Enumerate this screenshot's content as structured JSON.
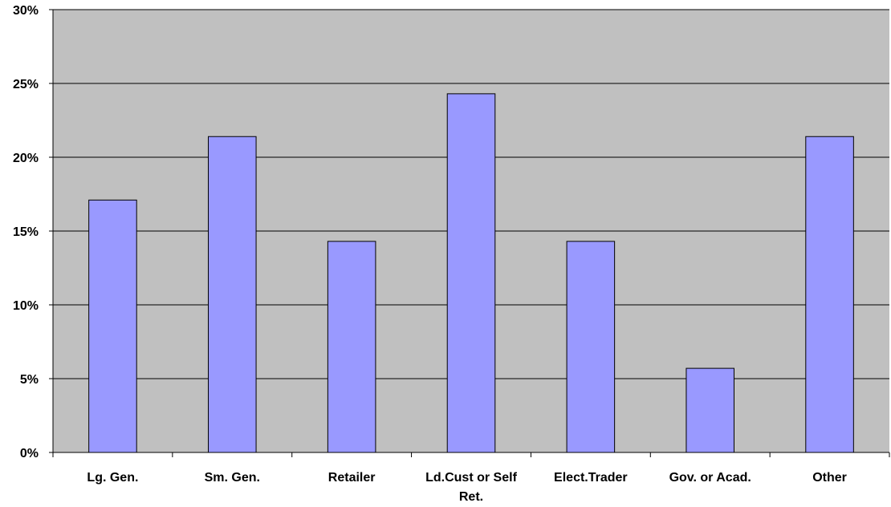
{
  "chart_data": {
    "type": "bar",
    "categories": [
      "Lg. Gen.",
      "Sm. Gen.",
      "Retailer",
      "Ld.Cust or Self Ret.",
      "Elect.Trader",
      "Gov. or Acad.",
      "Other"
    ],
    "category_lines": [
      [
        "Lg. Gen."
      ],
      [
        "Sm. Gen."
      ],
      [
        "Retailer"
      ],
      [
        "Ld.Cust or Self",
        "Ret."
      ],
      [
        "Elect.Trader"
      ],
      [
        "Gov. or Acad."
      ],
      [
        "Other"
      ]
    ],
    "values": [
      17.1,
      21.4,
      14.3,
      24.3,
      14.3,
      5.7,
      21.4
    ],
    "ylim": [
      0,
      30
    ],
    "yticks": [
      0,
      5,
      10,
      15,
      20,
      25,
      30
    ],
    "ytick_labels": [
      "0%",
      "5%",
      "10%",
      "15%",
      "20%",
      "25%",
      "30%"
    ],
    "title": "",
    "xlabel": "",
    "ylabel": "",
    "grid": true,
    "legend": "none",
    "colors": {
      "plot_background": "#c0c0c0",
      "bar_fill": "#9999ff",
      "bar_stroke": "#000000",
      "gridline": "#000000"
    }
  }
}
